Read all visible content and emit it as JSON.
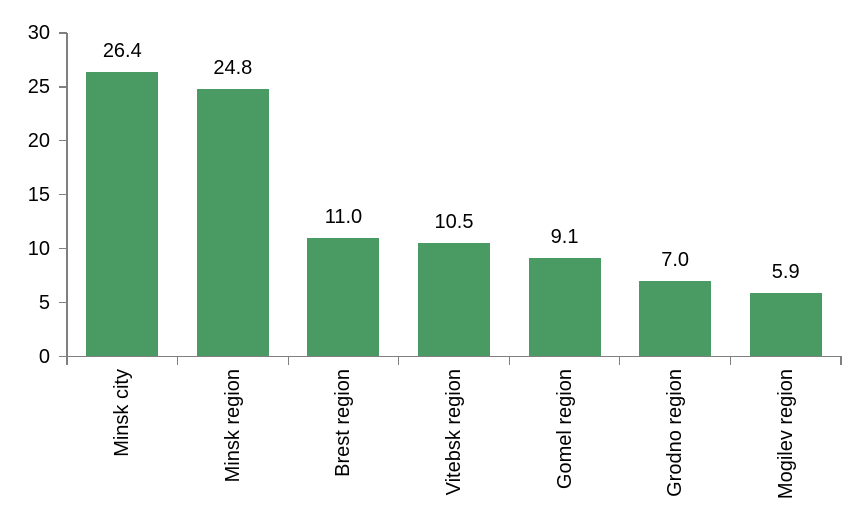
{
  "chart_data": {
    "type": "bar",
    "title": "",
    "categories": [
      "Minsk city",
      "Minsk region",
      "Brest region",
      "Vitebsk region",
      "Gomel region",
      "Grodno region",
      "Mogilev region"
    ],
    "values": [
      26.4,
      24.8,
      11.0,
      10.5,
      9.1,
      7.0,
      5.9
    ],
    "value_labels": [
      "26.4",
      "24.8",
      "11.0",
      "10.5",
      "9.1",
      "7.0",
      "5.9"
    ],
    "xlabel": "",
    "ylabel": "",
    "ylim": [
      0,
      30
    ],
    "yticks": [
      0,
      5,
      10,
      15,
      20,
      25,
      30
    ],
    "grid": "off",
    "legend": "none",
    "colors": {
      "bar_fill": "#4A9A63",
      "axis": "#808080",
      "text": "#000000",
      "background": "#FFFFFF"
    }
  }
}
